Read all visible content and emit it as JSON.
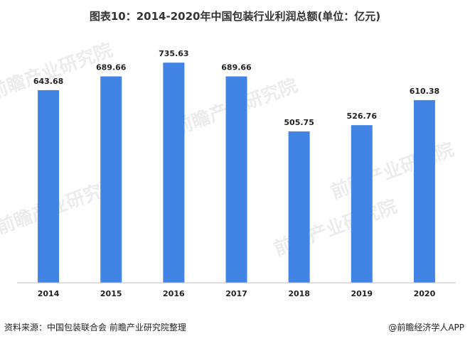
{
  "chart_data": {
    "type": "bar",
    "title": "图表10：2014-2020年中国包装行业利润总额(单位：亿元)",
    "categories": [
      "2014",
      "2015",
      "2016",
      "2017",
      "2018",
      "2019",
      "2020"
    ],
    "values": [
      643.68,
      689.66,
      735.63,
      689.66,
      505.75,
      526.76,
      610.38
    ],
    "value_labels": [
      "643.68",
      "689.66",
      "735.63",
      "689.66",
      "505.75",
      "526.76",
      "610.38"
    ],
    "xlabel": "",
    "ylabel": "",
    "ylim": [
      0,
      850
    ],
    "grid": false,
    "legend": "none",
    "bar_color": "#4184e4"
  },
  "footer": {
    "source": "资料来源：中国包装联合会 前瞻产业研究院整理",
    "publisher": "@前瞻经济学人APP"
  },
  "watermark": {
    "text": "前瞻产业研究院"
  }
}
